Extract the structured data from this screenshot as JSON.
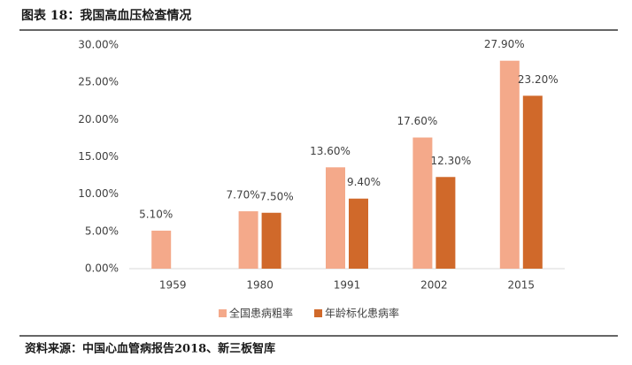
{
  "chart_data": {
    "type": "bar",
    "title": "图表 18：我国高血压检查情况",
    "categories": [
      "1959",
      "1980",
      "1991",
      "2002",
      "2015"
    ],
    "series": [
      {
        "name": "全国患病粗率",
        "color": "#f4a98a",
        "values": [
          5.1,
          7.7,
          13.6,
          17.6,
          27.9
        ],
        "value_labels": [
          "5.10%",
          "7.70%",
          "13.60%",
          "17.60%",
          "27.90%"
        ]
      },
      {
        "name": "年龄标化患病率",
        "color": "#d0692a",
        "values": [
          null,
          7.5,
          9.4,
          12.3,
          23.2
        ],
        "value_labels": [
          null,
          "7.50%",
          "9.40%",
          "12.30%",
          "23.20%"
        ]
      }
    ],
    "ylim": [
      0,
      30
    ],
    "yticks": [
      {
        "value": 0,
        "label": "0.00%"
      },
      {
        "value": 5,
        "label": "5.00%"
      },
      {
        "value": 10,
        "label": "10.00%"
      },
      {
        "value": 15,
        "label": "15.00%"
      },
      {
        "value": 20,
        "label": "20.00%"
      },
      {
        "value": 25,
        "label": "25.00%"
      },
      {
        "value": 30,
        "label": "30.00%"
      }
    ],
    "grid": false,
    "source": "资料来源：中国心血管病报告2018、新三板智库"
  }
}
